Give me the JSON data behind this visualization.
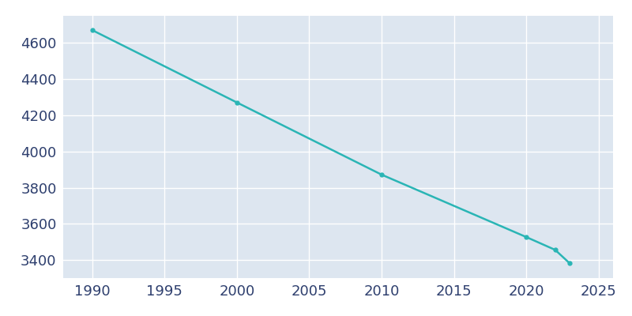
{
  "years": [
    1990,
    2000,
    2010,
    2020,
    2022,
    2023
  ],
  "population": [
    4671,
    4271,
    3872,
    3527,
    3456,
    3382
  ],
  "line_color": "#2ab5b5",
  "marker": "o",
  "marker_size": 3.5,
  "line_width": 1.8,
  "plot_bg_color": "#dde6f0",
  "fig_bg_color": "#ffffff",
  "grid_color": "#ffffff",
  "xlim": [
    1988,
    2026
  ],
  "ylim": [
    3300,
    4750
  ],
  "xticks": [
    1990,
    1995,
    2000,
    2005,
    2010,
    2015,
    2020,
    2025
  ],
  "yticks": [
    3400,
    3600,
    3800,
    4000,
    4200,
    4400,
    4600
  ],
  "tick_label_color": "#2e3f6e",
  "tick_fontsize": 13
}
